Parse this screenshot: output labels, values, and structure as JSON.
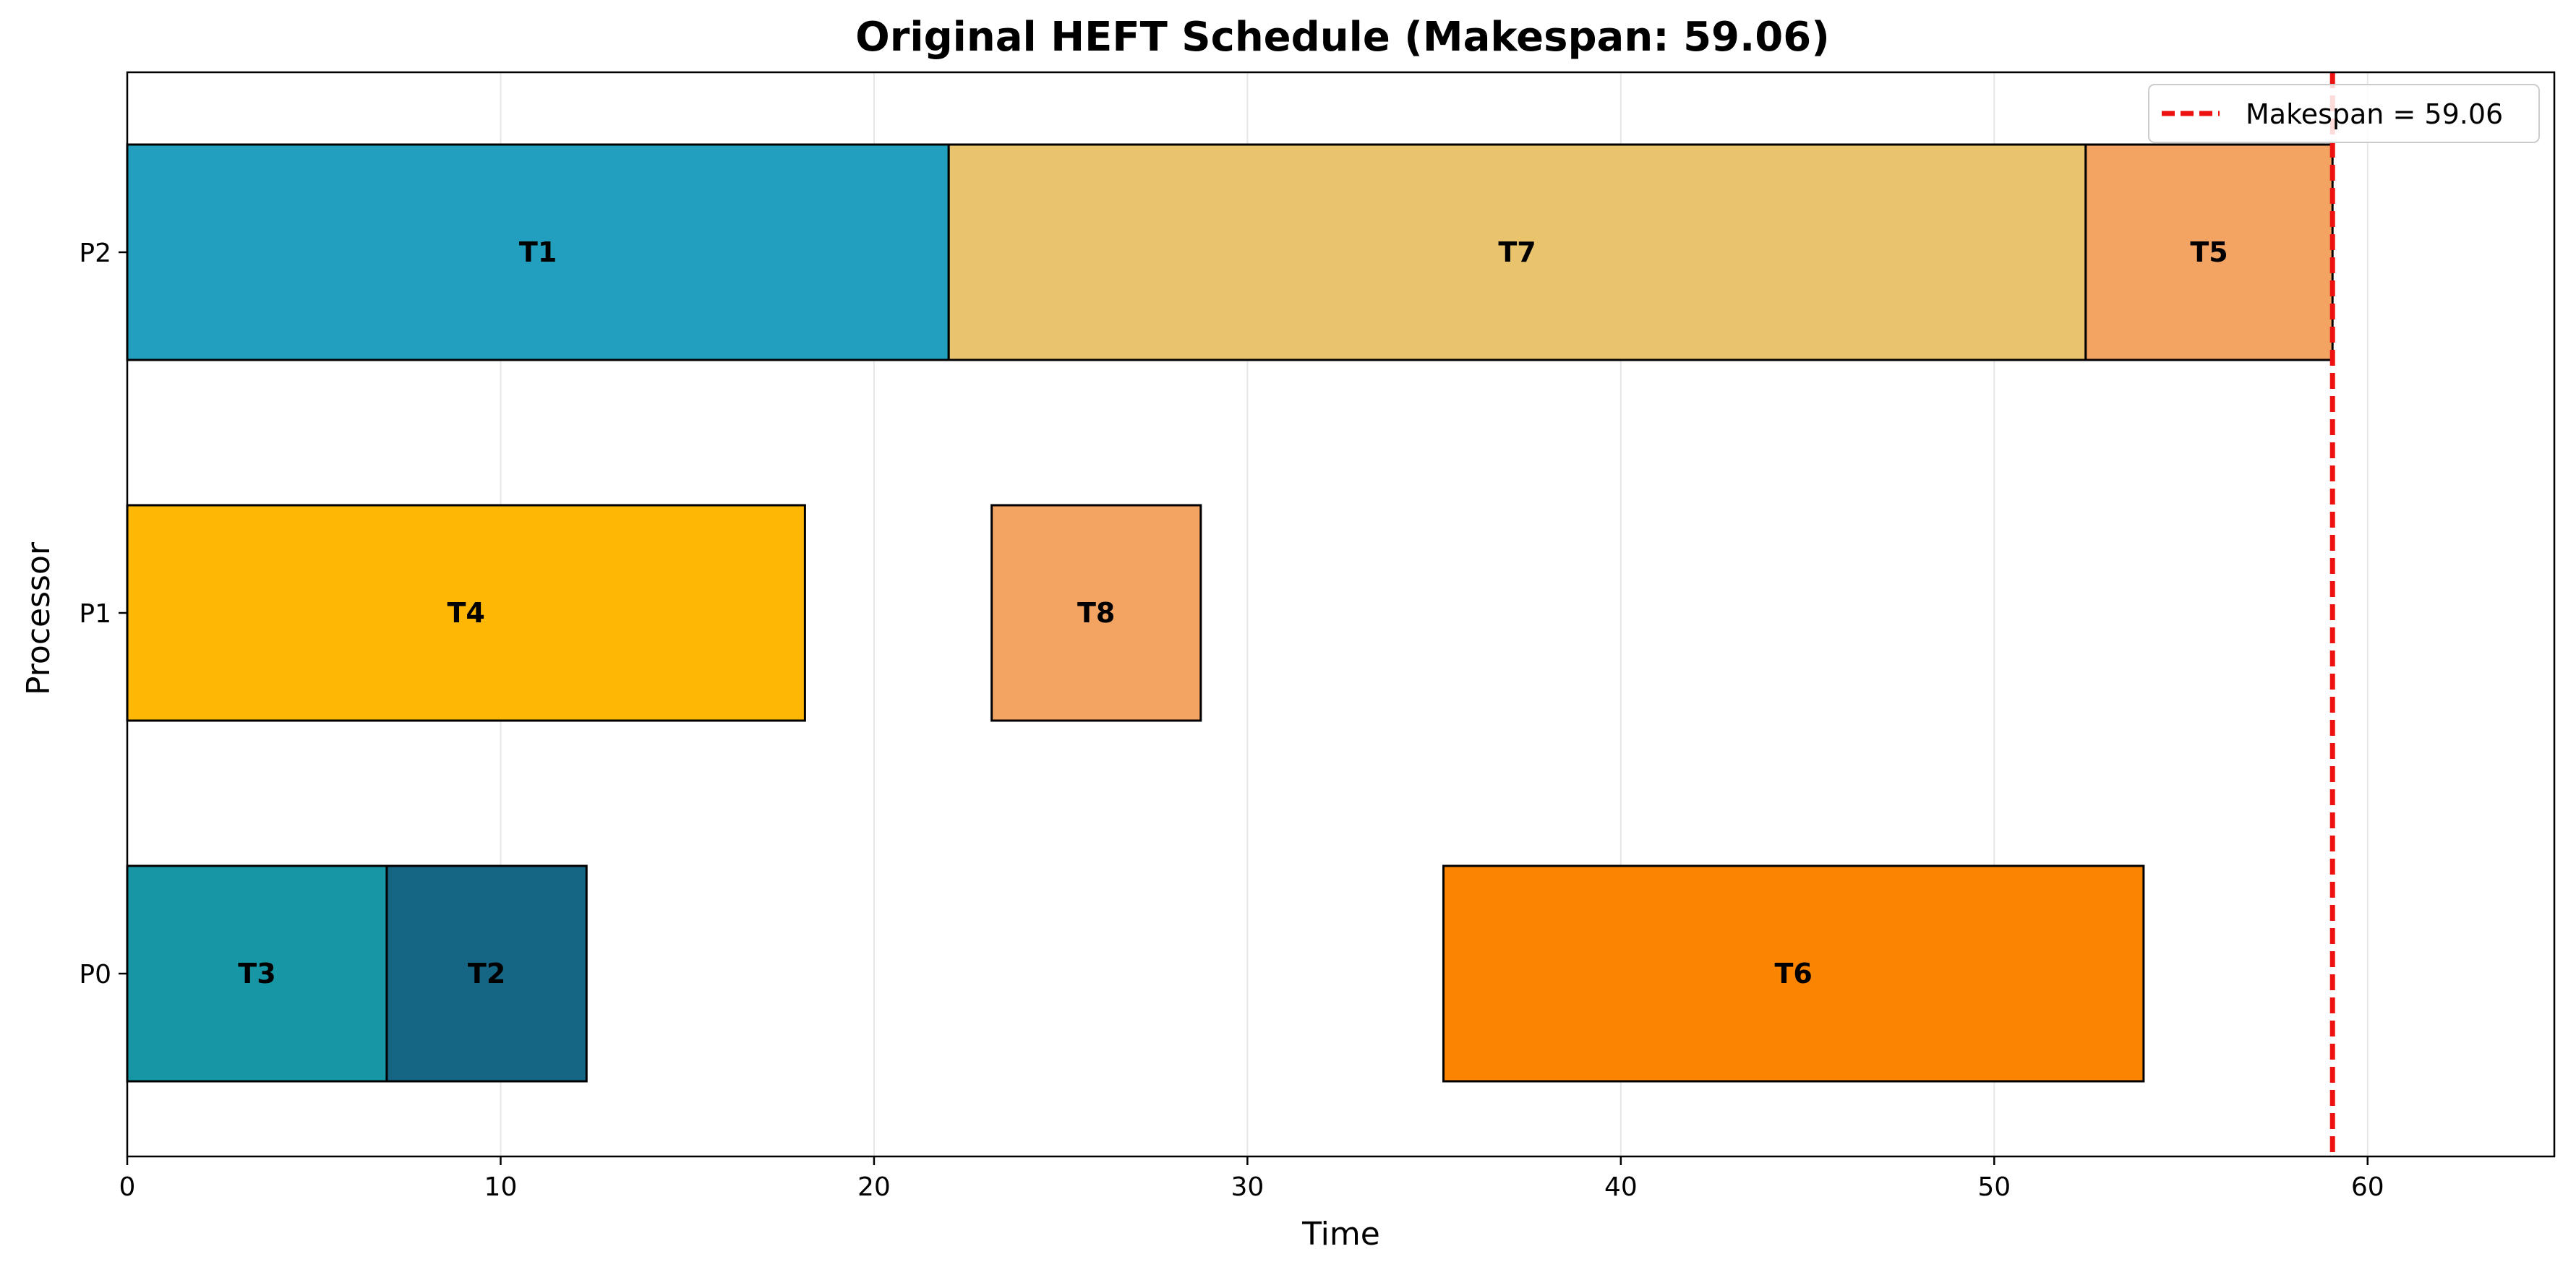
{
  "chart_data": {
    "type": "gantt",
    "title": "Original HEFT Schedule (Makespan: 59.06)",
    "xlabel": "Time",
    "ylabel": "Processor",
    "xlim": [
      0,
      65
    ],
    "xticks": [
      0,
      10,
      20,
      30,
      40,
      50,
      60
    ],
    "grid": "vertical",
    "processors": [
      "P0",
      "P1",
      "P2"
    ],
    "tasks": [
      {
        "name": "T1",
        "processor": "P2",
        "start": 0.0,
        "end": 22.0,
        "color": "#229FBF"
      },
      {
        "name": "T7",
        "processor": "P2",
        "start": 22.0,
        "end": 52.45,
        "color": "#E9C46C"
      },
      {
        "name": "T5",
        "processor": "P2",
        "start": 52.45,
        "end": 59.06,
        "color": "#F3A462"
      },
      {
        "name": "T4",
        "processor": "P1",
        "start": 0.0,
        "end": 18.15,
        "color": "#FEB705"
      },
      {
        "name": "T8",
        "processor": "P1",
        "start": 23.15,
        "end": 28.75,
        "color": "#F3A462"
      },
      {
        "name": "T3",
        "processor": "P0",
        "start": 0.0,
        "end": 6.95,
        "color": "#1797A6"
      },
      {
        "name": "T2",
        "processor": "P0",
        "start": 6.95,
        "end": 12.3,
        "color": "#156684"
      },
      {
        "name": "T6",
        "processor": "P0",
        "start": 35.25,
        "end": 54.0,
        "color": "#FB8500"
      }
    ],
    "makespan": {
      "value": 59.06,
      "label": "Makespan = 59.06",
      "color": "#EE1111"
    },
    "legend": {
      "placement": "top-right"
    }
  }
}
